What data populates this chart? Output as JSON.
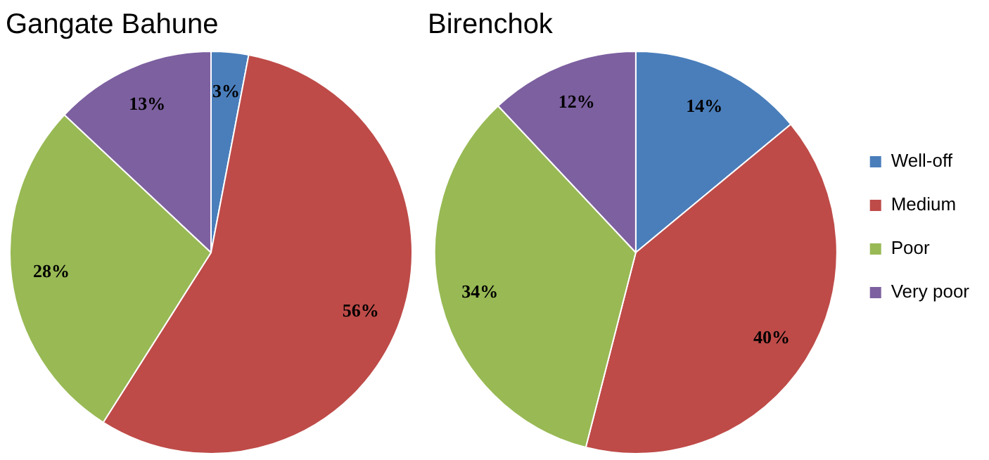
{
  "chart_data": [
    {
      "type": "pie",
      "title": "Gangate Bahune",
      "categories": [
        null,
        null,
        null,
        null
      ],
      "values": [
        3,
        56,
        28,
        13
      ],
      "value_labels": [
        "3%",
        "56%",
        "28%",
        "13%"
      ],
      "colors": [
        "#4a7ebb",
        "#be4b48",
        "#98b954",
        "#7d60a0"
      ],
      "legend": false
    },
    {
      "type": "pie",
      "title": "Birenchok",
      "categories": [
        "Well-off",
        "Medium",
        "Poor",
        "Very poor"
      ],
      "values": [
        14,
        40,
        34,
        12
      ],
      "value_labels": [
        "14%",
        "40%",
        "34%",
        "12%"
      ],
      "colors": [
        "#4a7ebb",
        "#be4b48",
        "#98b954",
        "#7d60a0"
      ],
      "legend": "right"
    }
  ]
}
